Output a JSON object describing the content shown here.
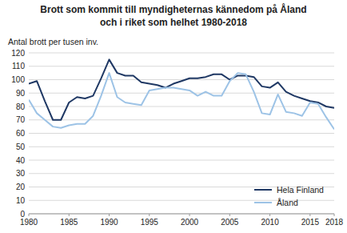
{
  "chart_data": {
    "type": "line",
    "title": "Brott som kommit till myndigheternas kännedom på Åland",
    "subtitle": "och i riket som helhet 1980-2018",
    "y_label": "Antal brott per tusen inv.",
    "x": [
      1980,
      1981,
      1982,
      1983,
      1984,
      1985,
      1986,
      1987,
      1988,
      1989,
      1990,
      1991,
      1992,
      1993,
      1994,
      1995,
      1996,
      1997,
      1998,
      1999,
      2000,
      2001,
      2002,
      2003,
      2004,
      2005,
      2006,
      2007,
      2008,
      2009,
      2010,
      2011,
      2012,
      2013,
      2014,
      2015,
      2016,
      2017,
      2018
    ],
    "series": [
      {
        "name": "Hela Finland",
        "color": "#1f3864",
        "values": [
          97,
          99,
          84,
          70,
          70,
          83,
          87,
          86,
          88,
          101,
          115,
          105,
          103,
          103,
          98,
          97,
          96,
          94,
          97,
          99,
          101,
          101,
          102,
          104,
          104,
          100,
          103,
          103,
          102,
          95,
          94,
          98,
          91,
          88,
          86,
          84,
          83,
          80,
          79
        ]
      },
      {
        "name": "Åland",
        "color": "#9dc3e6",
        "values": [
          85,
          75,
          70,
          65,
          64,
          66,
          67,
          67,
          73,
          88,
          105,
          87,
          83,
          82,
          81,
          92,
          93,
          94,
          94,
          93,
          92,
          88,
          91,
          88,
          88,
          99,
          105,
          104,
          91,
          75,
          74,
          89,
          76,
          75,
          73,
          83,
          82,
          72,
          63
        ]
      }
    ],
    "xlim": [
      1980,
      2018
    ],
    "xticks": [
      1980,
      1985,
      1990,
      1995,
      2000,
      2005,
      2010,
      2015,
      2018
    ],
    "ylim": [
      0,
      120
    ],
    "yticks": [
      0,
      10,
      20,
      30,
      40,
      50,
      60,
      70,
      80,
      90,
      100,
      110,
      120
    ],
    "grid": true,
    "legend": "lower right"
  }
}
